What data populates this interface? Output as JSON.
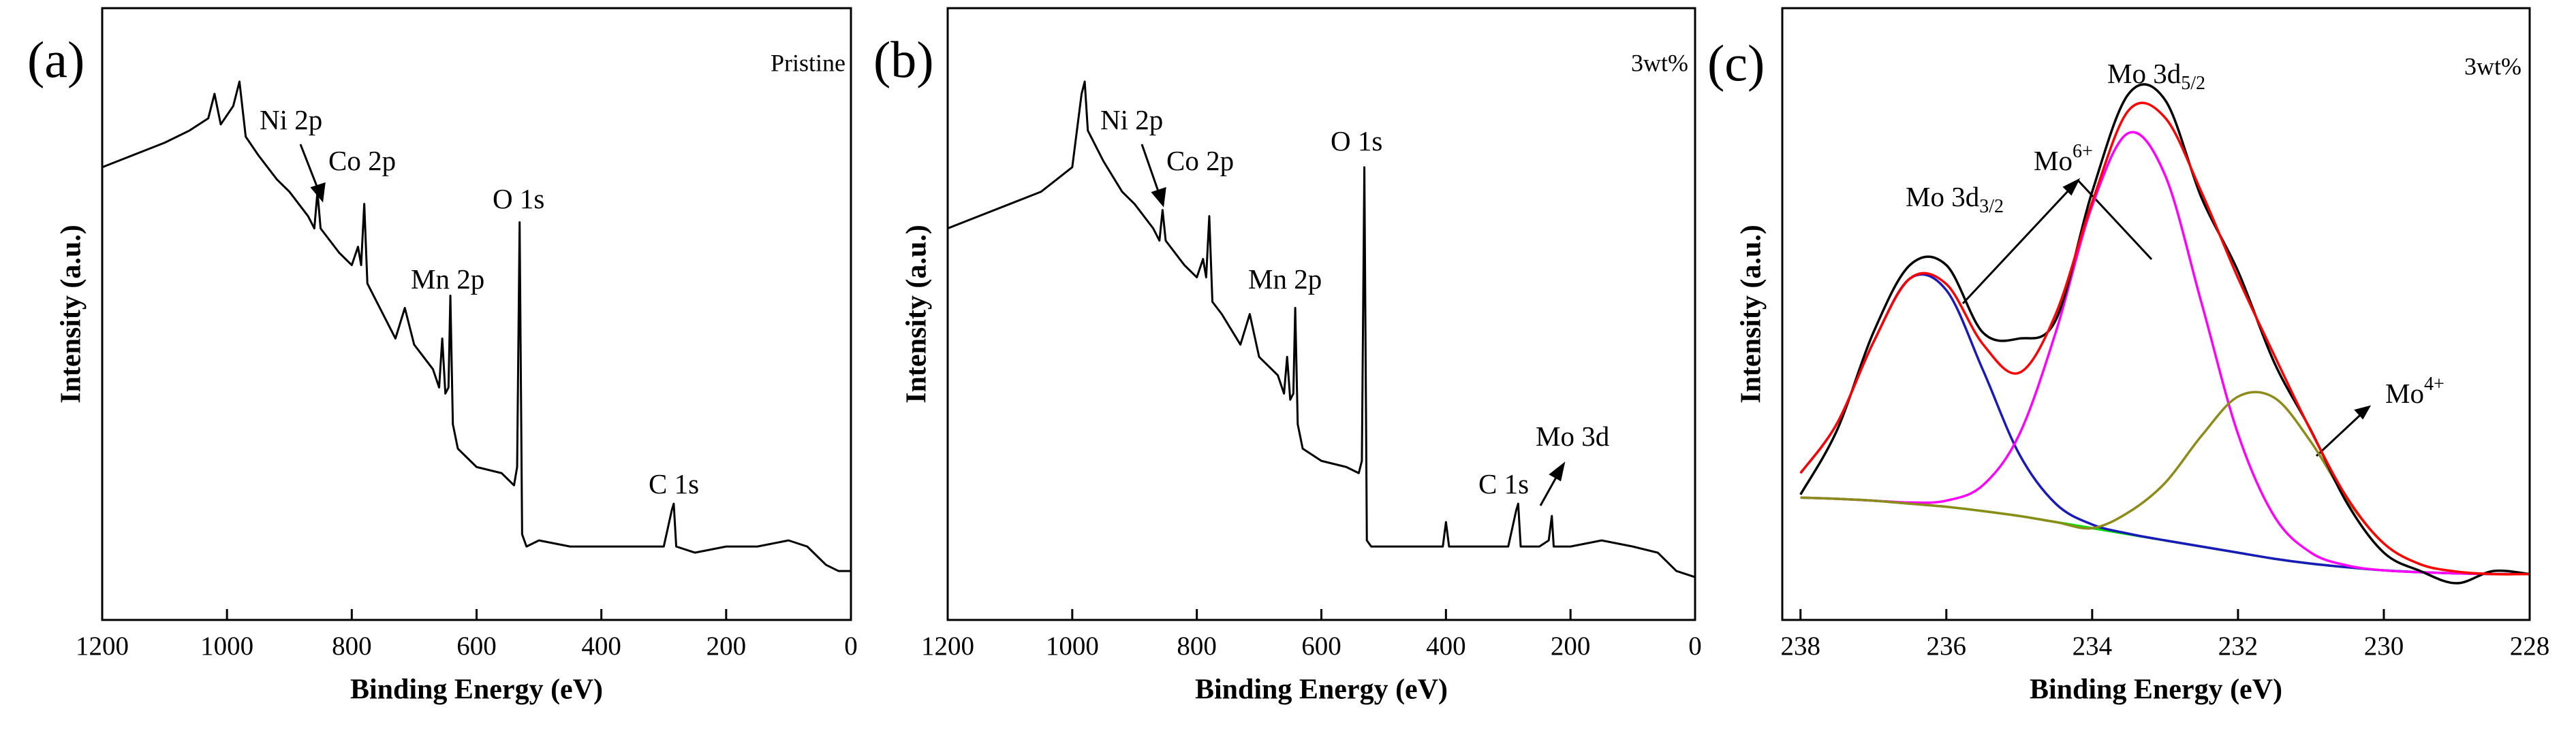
{
  "chart_data": [
    {
      "type": "line",
      "panel_label": "(a)",
      "corner_label": "Pristine",
      "xlabel": "Binding Energy (eV)",
      "ylabel": "Intensity (a.u.)",
      "xlim": [
        1200,
        0
      ],
      "xticks": [
        1200,
        1000,
        800,
        600,
        400,
        200,
        0
      ],
      "ylim": [
        0,
        100
      ],
      "x": [
        1200,
        1150,
        1100,
        1060,
        1030,
        1020,
        1010,
        990,
        980,
        970,
        950,
        920,
        900,
        870,
        860,
        855,
        850,
        820,
        800,
        790,
        785,
        780,
        775,
        760,
        730,
        715,
        700,
        670,
        660,
        655,
        650,
        645,
        642,
        638,
        630,
        600,
        560,
        540,
        535,
        531,
        527,
        520,
        500,
        450,
        400,
        350,
        300,
        287,
        284,
        280,
        250,
        200,
        150,
        100,
        70,
        40,
        20,
        0
      ],
      "series": [
        {
          "color": "#000000",
          "values": [
            74,
            76,
            78,
            80,
            82,
            86,
            81,
            84,
            88,
            79,
            76,
            72,
            70,
            66,
            64,
            70,
            64,
            60,
            58,
            61,
            58,
            68,
            55,
            52,
            46,
            51,
            45,
            41,
            38,
            46,
            37,
            38,
            53,
            32,
            28,
            25,
            24,
            22,
            25,
            65,
            14,
            12,
            13,
            12,
            12,
            12,
            12,
            18,
            19,
            12,
            11,
            12,
            12,
            13,
            12,
            9,
            8,
            8
          ]
        }
      ],
      "annotations": [
        {
          "text": "Ni 2p"
        },
        {
          "text": "Co 2p"
        },
        {
          "text": "O 1s"
        },
        {
          "text": "Mn 2p"
        },
        {
          "text": "C 1s"
        }
      ]
    },
    {
      "type": "line",
      "panel_label": "(b)",
      "corner_label": "3wt%",
      "xlabel": "Binding Energy (eV)",
      "ylabel": "Intensity (a.u.)",
      "xlim": [
        1200,
        0
      ],
      "xticks": [
        1200,
        1000,
        800,
        600,
        400,
        200,
        0
      ],
      "ylim": [
        0,
        100
      ],
      "x": [
        1200,
        1150,
        1100,
        1050,
        1000,
        985,
        980,
        975,
        950,
        920,
        900,
        870,
        860,
        855,
        850,
        820,
        800,
        790,
        785,
        780,
        775,
        760,
        730,
        715,
        700,
        670,
        660,
        655,
        650,
        645,
        642,
        638,
        630,
        600,
        560,
        540,
        535,
        531,
        527,
        520,
        500,
        450,
        405,
        400,
        395,
        350,
        300,
        287,
        284,
        280,
        250,
        235,
        230,
        227,
        200,
        150,
        100,
        60,
        30,
        0
      ],
      "series": [
        {
          "color": "#000000",
          "values": [
            64,
            66,
            68,
            70,
            74,
            86,
            88,
            80,
            75,
            70,
            68,
            64,
            62,
            67,
            62,
            58,
            56,
            59,
            56,
            66,
            52,
            50,
            45,
            50,
            43,
            40,
            37,
            43,
            36,
            37,
            51,
            32,
            28,
            26,
            25,
            24,
            26,
            74,
            13,
            12,
            12,
            12,
            12,
            16,
            12,
            12,
            12,
            18,
            19,
            12,
            12,
            13,
            17,
            12,
            12,
            13,
            12,
            11,
            8,
            7
          ]
        }
      ],
      "annotations": [
        {
          "text": "Ni 2p"
        },
        {
          "text": "Co 2p"
        },
        {
          "text": "O 1s"
        },
        {
          "text": "Mn 2p"
        },
        {
          "text": "C 1s"
        },
        {
          "text": "Mo 3d"
        }
      ]
    },
    {
      "type": "line",
      "panel_label": "(c)",
      "corner_label": "3wt%",
      "xlabel": "Binding Energy (eV)",
      "ylabel": "Intensity (a.u.)",
      "xlim": [
        238.25,
        228
      ],
      "xticks": [
        238,
        236,
        234,
        232,
        230,
        228
      ],
      "ylim": [
        0,
        100
      ],
      "x": [
        238,
        237.5,
        237,
        236.5,
        236,
        235.5,
        235,
        234.5,
        234,
        233.5,
        233,
        232.5,
        232,
        231.5,
        231,
        230.5,
        230,
        229.5,
        229,
        228.5,
        228
      ],
      "series": [
        {
          "color": "#00e000",
          "values": [
            20,
            19.8,
            19.5,
            19,
            18.5,
            17.8,
            17,
            16,
            15,
            14,
            13,
            12,
            11,
            10,
            9.2,
            8.6,
            8.1,
            7.8,
            7.6,
            7.5,
            7.5
          ]
        },
        {
          "color": "#1a1ab8",
          "values": [
            24,
            32.1,
            45.4,
            55.8,
            53.9,
            40.9,
            27.1,
            19,
            15.6,
            14.1,
            13,
            12,
            11,
            10,
            9.2,
            8.6,
            8.1,
            7.8,
            7.6,
            7.5,
            7.5
          ]
        },
        {
          "color": "#ff00ff",
          "values": [
            20,
            19.8,
            19.5,
            19.2,
            19.5,
            22,
            30.3,
            47,
            67.7,
            79.6,
            72.7,
            51.8,
            30.4,
            16.9,
            11,
            8.9,
            8.1,
            7.8,
            7.6,
            7.5,
            7.5
          ]
        },
        {
          "color": "#8c8c1a",
          "values": [
            20,
            19.8,
            19.5,
            19,
            18.5,
            17.8,
            17,
            16,
            15,
            17.6,
            22.4,
            30.1,
            36.5,
            36.3,
            29.1,
            19.6,
            12.5,
            9.1,
            7.9,
            7.5,
            7.5
          ]
        },
        {
          "color": "#000000",
          "values": [
            20.5,
            31,
            47,
            58,
            58,
            47,
            46,
            49,
            70,
            86,
            85,
            69,
            57,
            42,
            31,
            19,
            11,
            8,
            6,
            8,
            7.5
          ]
        },
        {
          "color": "#ff0000",
          "values": [
            24,
            32.1,
            45.4,
            55.8,
            54.9,
            45.1,
            40.4,
            50,
            68.3,
            83.3,
            82.1,
            69.9,
            55.9,
            43.2,
            30.9,
            19.9,
            12.5,
            9.1,
            7.9,
            7.5,
            7.5
          ]
        }
      ],
      "annotations": [
        {
          "text": "Mo 3d",
          "sub": "3/2"
        },
        {
          "text": "Mo",
          "sup": "6+"
        },
        {
          "text": "Mo 3d",
          "sub": "5/2"
        },
        {
          "text": "Mo",
          "sup": "4+"
        }
      ]
    }
  ]
}
